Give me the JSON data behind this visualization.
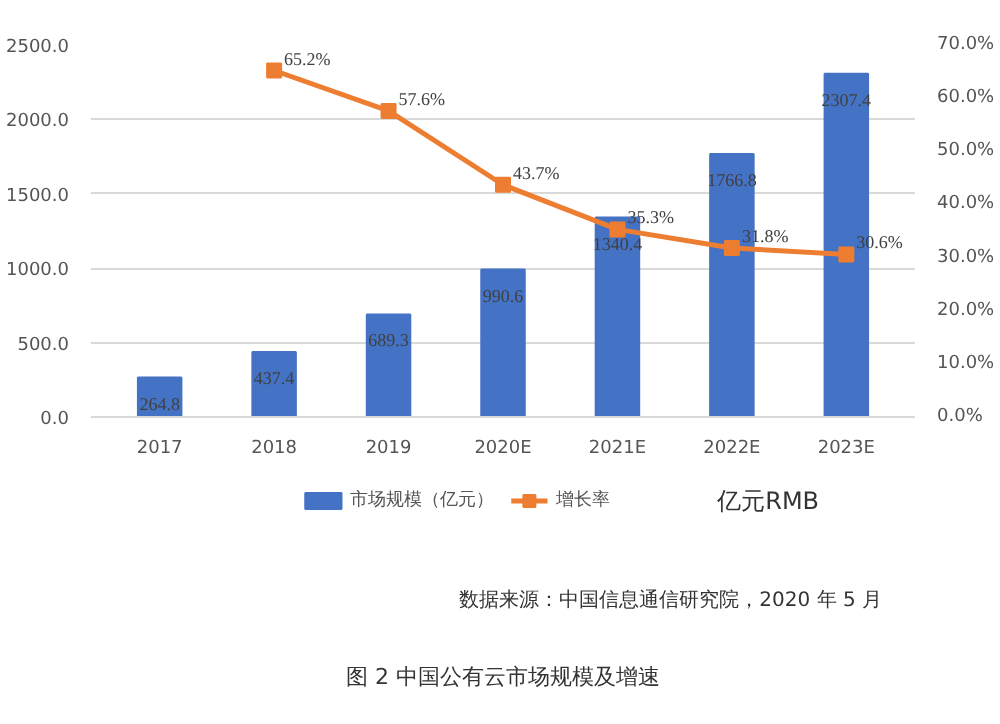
{
  "chart_data": {
    "type": "bar",
    "title": "图 2 中国公有云市场规模及增速",
    "categories": [
      "2017",
      "2018",
      "2019",
      "2020E",
      "2021E",
      "2022E",
      "2023E"
    ],
    "series": [
      {
        "name": "市场规模（亿元）",
        "color": "#4472c4",
        "values": [
          264.8,
          437.4,
          689.3,
          990.6,
          1340.4,
          1766.8,
          2307.4
        ],
        "value_labels": [
          "264.8",
          "437.4",
          "689.3",
          "990.6",
          "1340.4",
          "1766.8",
          "2307.4"
        ]
      },
      {
        "name": "增长率",
        "type": "line",
        "axis": "y2",
        "color": "#ed7d31",
        "values": [
          null,
          65.2,
          57.6,
          43.7,
          35.3,
          31.8,
          30.6
        ],
        "value_labels": [
          null,
          "65.2%",
          "57.6%",
          "43.7%",
          "35.3%",
          "31.8%",
          "30.6%"
        ]
      }
    ],
    "ylim": [
      0,
      2500
    ],
    "yticks": [
      {
        "value": 0,
        "label": "0.0"
      },
      {
        "value": 500,
        "label": "500.0"
      },
      {
        "value": 1000,
        "label": "1000.0"
      },
      {
        "value": 1500,
        "label": "1500.0"
      },
      {
        "value": 2000,
        "label": "2000.0"
      },
      {
        "value": 2500,
        "label": "2500.0"
      }
    ],
    "y2lim": [
      0,
      70
    ],
    "y2ticks": [
      {
        "value": 0,
        "label": "0.0%"
      },
      {
        "value": 10,
        "label": "10.0%"
      },
      {
        "value": 20,
        "label": "20.0%"
      },
      {
        "value": 30,
        "label": "30.0%"
      },
      {
        "value": 40,
        "label": "40.0%"
      },
      {
        "value": 50,
        "label": "50.0%"
      },
      {
        "value": 60,
        "label": "60.0%"
      },
      {
        "value": 70,
        "label": "70.0%"
      }
    ],
    "grid": "y",
    "legend": "bottom",
    "marker": "square",
    "annotations": [
      "亿元RMB",
      "数据来源：中国信息通信研究院，2020 年 5 月"
    ]
  }
}
